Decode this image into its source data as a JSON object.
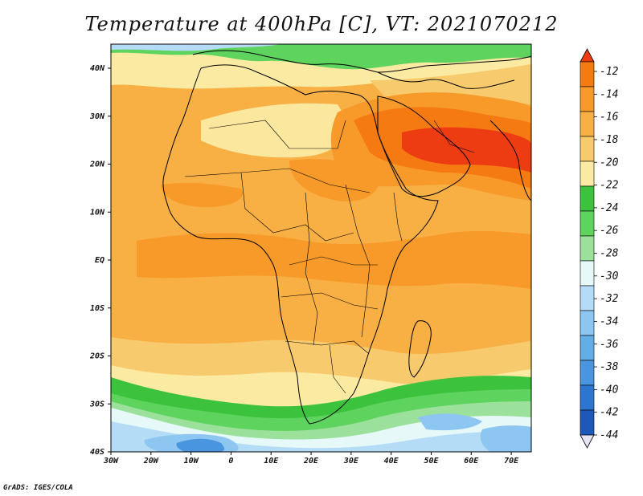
{
  "title": "Temperature at 400hPa [C], VT: 2021070212",
  "credit": "GrADS: IGES/COLA",
  "lon_labels": [
    "30W",
    "20W",
    "10W",
    "0",
    "10E",
    "20E",
    "30E",
    "40E",
    "50E",
    "60E",
    "70E"
  ],
  "lat_labels": [
    "40N",
    "30N",
    "20N",
    "10N",
    "EQ",
    "10S",
    "20S",
    "30S",
    "40S"
  ],
  "colorbar": {
    "labels": [
      "-12",
      "-14",
      "-16",
      "-18",
      "-20",
      "-22",
      "-24",
      "-26",
      "-28",
      "-30",
      "-32",
      "-34",
      "-36",
      "-38",
      "-40",
      "-42",
      "-44"
    ],
    "colors": [
      "#ee3c12",
      "#f57a12",
      "#f79a2a",
      "#f8b045",
      "#f7cb6d",
      "#fbeaa2",
      "#3cc23c",
      "#5ed35e",
      "#9be19b",
      "#e6f8f8",
      "#b4dcf7",
      "#8ec6f2",
      "#64aee8",
      "#4a96de",
      "#2d76d0",
      "#1e58b8",
      "#0a1f7a"
    ]
  },
  "legend_colors": {
    "temp_-14_to_-12": "#ee3c12",
    "temp_-16_to_-14": "#f57a12",
    "temp_-18_to_-16": "#f79a2a",
    "temp_-20_to_-18": "#f8b045",
    "temp_-22_to_-20": "#f7cb6d",
    "temp_-24_to_-22": "#fbeaa2",
    "temp_-26_to_-24": "#3cc23c",
    "temp_-28_to_-26": "#5ed35e",
    "temp_-30_to_-28": "#9be19b",
    "temp_-32_to_-30": "#e6f8f8",
    "temp_-34_to_-32": "#b4dcf7",
    "temp_-36_to_-34": "#8ec6f2",
    "temp_-38_to_-36": "#64aee8",
    "temp_-40_to_-38": "#4a96de",
    "temp_-42_to_-40": "#2d76d0",
    "temp_-44_to_-42": "#1e58b8",
    "temp_below_-44": "#0a1f7a"
  }
}
